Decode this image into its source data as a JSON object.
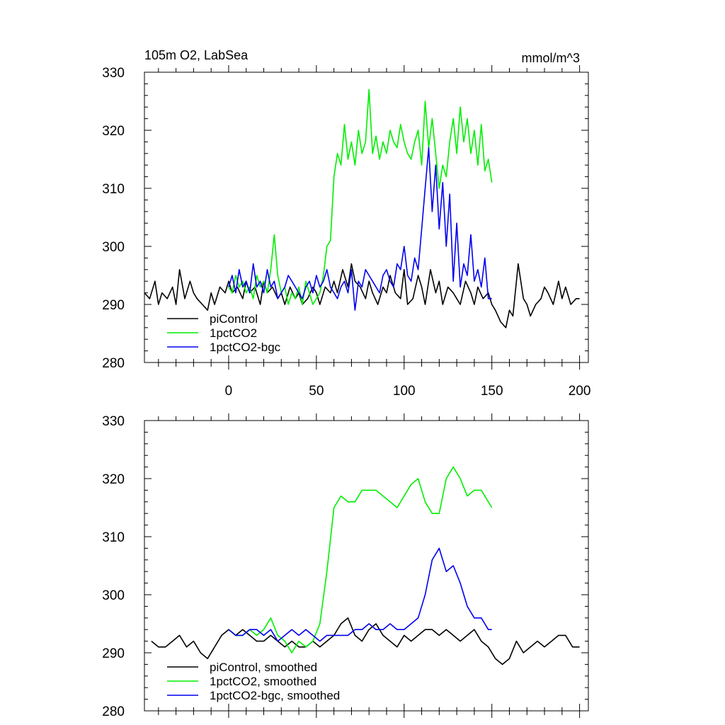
{
  "chart_data": [
    {
      "type": "line",
      "title_left": "105m O2, LabSea",
      "title_right": "mmol/m^3",
      "xlabel": "",
      "ylabel": "",
      "xlim": [
        -48,
        205
      ],
      "ylim": [
        280,
        330
      ],
      "xticks": [
        0,
        50,
        100,
        150,
        200
      ],
      "xtick_labels": [
        "0",
        "50",
        "100",
        "150",
        "200"
      ],
      "yticks": [
        280,
        290,
        300,
        310,
        320,
        330
      ],
      "ytick_labels": [
        "280",
        "290",
        "300",
        "310",
        "320",
        "330"
      ],
      "legend_position": "bottom-left",
      "grid": false,
      "series": [
        {
          "name": "piControl",
          "color": "#000000",
          "x": [
            -48,
            -45,
            -42,
            -40,
            -38,
            -35,
            -32,
            -30,
            -28,
            -25,
            -22,
            -20,
            -18,
            -15,
            -12,
            -10,
            -8,
            -5,
            -2,
            0,
            2,
            5,
            8,
            10,
            12,
            15,
            18,
            20,
            22,
            25,
            28,
            30,
            32,
            35,
            38,
            40,
            42,
            45,
            48,
            50,
            52,
            55,
            58,
            60,
            62,
            65,
            68,
            70,
            72,
            75,
            78,
            80,
            82,
            85,
            88,
            90,
            92,
            95,
            98,
            100,
            102,
            105,
            108,
            110,
            112,
            115,
            118,
            120,
            122,
            125,
            128,
            130,
            132,
            135,
            138,
            140,
            142,
            145,
            148,
            150,
            152,
            155,
            158,
            160,
            162,
            165,
            168,
            170,
            172,
            175,
            178,
            180,
            182,
            185,
            188,
            190,
            192,
            195,
            198,
            200
          ],
          "y": [
            292,
            291,
            294,
            290,
            292,
            291,
            293,
            290,
            296,
            291,
            294,
            292,
            291,
            290,
            289,
            292,
            290,
            293,
            292,
            294,
            292,
            293,
            291,
            294,
            292,
            293,
            290,
            294,
            292,
            293,
            291,
            292,
            290,
            293,
            291,
            292,
            290,
            291,
            293,
            292,
            290,
            293,
            292,
            294,
            292,
            296,
            293,
            297,
            294,
            293,
            291,
            294,
            292,
            290,
            293,
            292,
            295,
            292,
            291,
            296,
            290,
            291,
            295,
            293,
            290,
            296,
            292,
            294,
            290,
            293,
            292,
            291,
            290,
            294,
            292,
            290,
            293,
            291,
            292,
            290,
            289,
            287,
            286,
            289,
            288,
            297,
            291,
            290,
            288,
            290,
            291,
            293,
            292,
            290,
            294,
            291,
            293,
            290,
            291,
            291
          ]
        },
        {
          "name": "1pctCO2",
          "color": "#00ee00",
          "x": [
            0,
            2,
            4,
            6,
            8,
            10,
            12,
            14,
            16,
            18,
            20,
            22,
            24,
            26,
            28,
            30,
            32,
            34,
            36,
            38,
            40,
            42,
            44,
            46,
            48,
            50,
            52,
            54,
            56,
            58,
            60,
            62,
            64,
            66,
            68,
            70,
            72,
            74,
            76,
            78,
            80,
            82,
            84,
            86,
            88,
            90,
            92,
            94,
            96,
            98,
            100,
            102,
            104,
            106,
            108,
            110,
            112,
            114,
            116,
            118,
            120,
            122,
            124,
            126,
            128,
            130,
            132,
            134,
            136,
            138,
            140,
            142,
            144,
            146,
            148,
            150
          ],
          "y": [
            293,
            292,
            295,
            293,
            294,
            292,
            293,
            291,
            295,
            293,
            294,
            292,
            296,
            302,
            295,
            292,
            293,
            290,
            292,
            291,
            293,
            290,
            294,
            292,
            290,
            291,
            292,
            295,
            300,
            301,
            312,
            316,
            314,
            321,
            315,
            318,
            314,
            320,
            316,
            318,
            327,
            316,
            319,
            315,
            318,
            316,
            320,
            318,
            317,
            321,
            318,
            316,
            315,
            318,
            320,
            314,
            325,
            317,
            322,
            316,
            310,
            314,
            312,
            318,
            322,
            316,
            324,
            318,
            322,
            316,
            320,
            314,
            321,
            313,
            315,
            311
          ]
        },
        {
          "name": "1pctCO2-bgc",
          "color": "#0000ee",
          "x": [
            0,
            2,
            4,
            6,
            8,
            10,
            12,
            14,
            16,
            18,
            20,
            22,
            24,
            26,
            28,
            30,
            32,
            34,
            36,
            38,
            40,
            42,
            44,
            46,
            48,
            50,
            52,
            54,
            56,
            58,
            60,
            62,
            64,
            66,
            68,
            70,
            72,
            74,
            76,
            78,
            80,
            82,
            84,
            86,
            88,
            90,
            92,
            94,
            96,
            98,
            100,
            102,
            104,
            106,
            108,
            110,
            112,
            114,
            116,
            118,
            120,
            122,
            124,
            126,
            128,
            130,
            132,
            134,
            136,
            138,
            140,
            142,
            144,
            146,
            148,
            150
          ],
          "y": [
            293,
            295,
            292,
            296,
            293,
            294,
            292,
            297,
            293,
            294,
            292,
            296,
            293,
            294,
            291,
            292,
            293,
            295,
            294,
            293,
            292,
            291,
            293,
            294,
            292,
            295,
            293,
            294,
            296,
            293,
            292,
            291,
            293,
            294,
            292,
            296,
            289,
            294,
            293,
            296,
            295,
            294,
            293,
            292,
            295,
            296,
            294,
            293,
            297,
            296,
            300,
            295,
            294,
            298,
            296,
            303,
            310,
            317,
            306,
            314,
            303,
            311,
            300,
            309,
            294,
            304,
            293,
            297,
            295,
            302,
            294,
            296,
            293,
            298,
            291,
            291
          ]
        }
      ]
    },
    {
      "type": "line",
      "title_left": "",
      "title_right": "",
      "xlabel": "",
      "ylabel": "",
      "xlim": [
        -48,
        205
      ],
      "ylim": [
        280,
        330
      ],
      "xticks": [
        0,
        50,
        100,
        150,
        200
      ],
      "xtick_labels": [],
      "yticks": [
        280,
        290,
        300,
        310,
        320,
        330
      ],
      "ytick_labels": [
        "280",
        "290",
        "300",
        "310",
        "320",
        "330"
      ],
      "legend_position": "bottom-left",
      "grid": false,
      "series": [
        {
          "name": "piControl, smoothed",
          "color": "#000000",
          "x": [
            -44,
            -40,
            -36,
            -32,
            -28,
            -24,
            -20,
            -16,
            -12,
            -8,
            -4,
            0,
            4,
            8,
            12,
            16,
            20,
            24,
            28,
            32,
            36,
            40,
            44,
            48,
            52,
            56,
            60,
            64,
            68,
            72,
            76,
            80,
            84,
            88,
            92,
            96,
            100,
            104,
            108,
            112,
            116,
            120,
            124,
            128,
            132,
            136,
            140,
            144,
            148,
            152,
            156,
            160,
            164,
            168,
            172,
            176,
            180,
            184,
            188,
            192,
            196,
            200
          ],
          "y": [
            292,
            291,
            291,
            292,
            293,
            291,
            292,
            290,
            289,
            291,
            293,
            294,
            293,
            294,
            293,
            292,
            292,
            293,
            292,
            291,
            292,
            291,
            291,
            292,
            291,
            292,
            293,
            295,
            296,
            293,
            292,
            294,
            295,
            293,
            292,
            291,
            293,
            292,
            293,
            294,
            294,
            293,
            294,
            293,
            292,
            293,
            294,
            292,
            291,
            289,
            288,
            289,
            292,
            290,
            291,
            292,
            291,
            292,
            293,
            293,
            291,
            291
          ]
        },
        {
          "name": "1pctCO2, smoothed",
          "color": "#00ee00",
          "x": [
            0,
            4,
            8,
            12,
            16,
            20,
            24,
            28,
            32,
            36,
            40,
            44,
            48,
            52,
            56,
            60,
            64,
            68,
            72,
            76,
            80,
            84,
            88,
            92,
            96,
            100,
            104,
            108,
            112,
            116,
            120,
            124,
            128,
            132,
            136,
            140,
            144,
            148,
            150
          ],
          "y": [
            294,
            293,
            293,
            294,
            293,
            294,
            296,
            293,
            292,
            290,
            292,
            291,
            292,
            295,
            304,
            315,
            317,
            316,
            316,
            318,
            318,
            318,
            317,
            316,
            315,
            317,
            319,
            320,
            316,
            314,
            314,
            320,
            322,
            320,
            317,
            318,
            318,
            316,
            315
          ]
        },
        {
          "name": "1pctCO2-bgc, smoothed",
          "color": "#0000ee",
          "x": [
            0,
            4,
            8,
            12,
            16,
            20,
            24,
            28,
            32,
            36,
            40,
            44,
            48,
            52,
            56,
            60,
            64,
            68,
            72,
            76,
            80,
            84,
            88,
            92,
            96,
            100,
            104,
            108,
            112,
            116,
            120,
            124,
            128,
            132,
            136,
            140,
            144,
            148,
            150
          ],
          "y": [
            294,
            293,
            293,
            294,
            294,
            293,
            294,
            292,
            293,
            294,
            293,
            294,
            293,
            292,
            293,
            293,
            293,
            293,
            294,
            294,
            295,
            294,
            294,
            295,
            294,
            294,
            295,
            296,
            300,
            306,
            308,
            304,
            305,
            302,
            298,
            296,
            296,
            294,
            294
          ]
        }
      ]
    }
  ]
}
